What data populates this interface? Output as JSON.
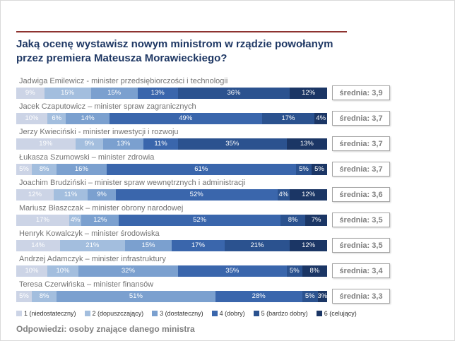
{
  "title": "Jaką ocenę wystawisz nowym ministrom w rządzie powołanym przez premiera Mateusza Morawieckiego?",
  "footer": "Odpowiedzi: osoby znające danego ministra",
  "average_prefix": "średnia:",
  "chart_data": {
    "type": "bar",
    "stacked": true,
    "orientation": "horizontal",
    "value_unit": "%",
    "xlim": [
      0,
      100
    ],
    "legend": [
      "1 (niedostateczny)",
      "2 (dopuszczający)",
      "3 (dostateczny)",
      "4 (dobry)",
      "5 (bardzo dobry)",
      "6 (celujący)"
    ],
    "colors": [
      "#ccd4e6",
      "#a3bede",
      "#7ba0cf",
      "#3a66ac",
      "#2b528f",
      "#1b3665"
    ],
    "rows": [
      {
        "label": "Jadwiga Emilewicz - minister przedsiębiorczości i technologii",
        "values": [
          9,
          15,
          15,
          13,
          36,
          12
        ],
        "average": "3,9",
        "average_label": "średnia: 3,9"
      },
      {
        "label": "Jacek Czaputowicz – minister spraw zagranicznych",
        "values": [
          10,
          6,
          14,
          49,
          17,
          4
        ],
        "average": "3,7",
        "average_label": "średnia: 3,7"
      },
      {
        "label": "Jerzy Kwieciński - minister inwestycji i rozwoju",
        "values": [
          19,
          9,
          13,
          11,
          35,
          13
        ],
        "average": "3,7",
        "average_label": "średnia: 3,7"
      },
      {
        "label": "Łukasza Szumowski – minister zdrowia",
        "values": [
          5,
          8,
          16,
          61,
          5,
          5
        ],
        "average": "3,7",
        "average_label": "średnia: 3,7"
      },
      {
        "label": "Joachim Brudziński – minister spraw wewnętrznych i administracji",
        "values": [
          12,
          11,
          9,
          52,
          4,
          12
        ],
        "average": "3,6",
        "average_label": "średnia: 3,6"
      },
      {
        "label": "Mariusz Błaszczak – minister obrony narodowej",
        "values": [
          17,
          4,
          12,
          52,
          8,
          7
        ],
        "average": "3,5",
        "average_label": "średnia: 3,5"
      },
      {
        "label": "Henryk Kowalczyk – minister środowiska",
        "values": [
          14,
          21,
          15,
          17,
          21,
          12
        ],
        "average": "3,5",
        "average_label": "średnia: 3,5"
      },
      {
        "label": "Andrzej Adamczyk – minister infrastruktury",
        "values": [
          10,
          10,
          32,
          35,
          5,
          8
        ],
        "average": "3,4",
        "average_label": "średnia: 3,4"
      },
      {
        "label": "Teresa Czerwińska – minister finansów",
        "values": [
          5,
          8,
          51,
          28,
          5,
          3
        ],
        "average": "3,3",
        "average_label": "średnia: 3,3"
      }
    ],
    "accent_colors": {
      "title": "#1f3864",
      "rule": "#8e3330",
      "label_gray": "#737373"
    }
  }
}
